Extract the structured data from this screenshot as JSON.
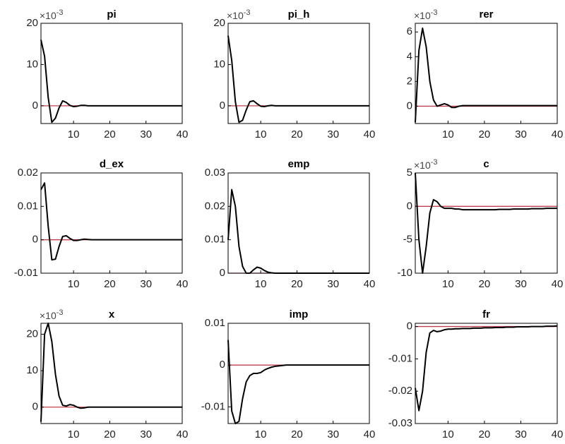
{
  "chart_data": [
    {
      "type": "line",
      "title": "pi",
      "y_multiplier": "×10",
      "y_multiplier_exponent": "-3",
      "color": "#000000",
      "zero_line_color": "#c0404f",
      "xlim": [
        1,
        40
      ],
      "xticks": [
        10,
        20,
        30,
        40
      ],
      "ylim": [
        -4.3,
        20
      ],
      "yticks": [
        0,
        10,
        20
      ],
      "x": [
        1,
        2,
        3,
        4,
        5,
        6,
        7,
        8,
        9,
        10,
        11,
        12,
        13,
        14,
        15,
        16,
        17,
        18,
        19,
        20,
        21,
        22,
        23,
        24,
        25,
        26,
        27,
        28,
        29,
        30,
        31,
        32,
        33,
        34,
        35,
        36,
        37,
        38,
        39,
        40
      ],
      "values": [
        16,
        12,
        2,
        -4,
        -3,
        -0.5,
        1.2,
        0.8,
        0.1,
        -0.2,
        -0.1,
        0.1,
        0.1,
        0,
        0,
        0,
        0,
        0,
        0,
        0,
        0,
        0,
        0,
        0,
        0,
        0,
        0,
        0,
        0,
        0,
        0,
        0,
        0,
        0,
        0,
        0,
        0,
        0,
        0,
        0
      ]
    },
    {
      "type": "line",
      "title": "pi_h",
      "y_multiplier": "×10",
      "y_multiplier_exponent": "-3",
      "color": "#000000",
      "zero_line_color": "#c0404f",
      "xlim": [
        1,
        40
      ],
      "xticks": [
        10,
        20,
        30,
        40
      ],
      "ylim": [
        -4.3,
        20
      ],
      "yticks": [
        0,
        10,
        20
      ],
      "x": [
        1,
        2,
        3,
        4,
        5,
        6,
        7,
        8,
        9,
        10,
        11,
        12,
        13,
        14,
        15,
        16,
        17,
        18,
        19,
        20,
        21,
        22,
        23,
        24,
        25,
        26,
        27,
        28,
        29,
        30,
        31,
        32,
        33,
        34,
        35,
        36,
        37,
        38,
        39,
        40
      ],
      "values": [
        17,
        11,
        1,
        -4,
        -3.5,
        -1,
        1,
        1.2,
        0.5,
        -0.1,
        -0.2,
        0,
        0.1,
        0,
        0,
        0,
        0,
        0,
        0,
        0,
        0,
        0,
        0,
        0,
        0,
        0,
        0,
        0,
        0,
        0,
        0,
        0,
        0,
        0,
        0,
        0,
        0,
        0,
        0,
        0
      ]
    },
    {
      "type": "line",
      "title": "rer",
      "y_multiplier": "×10",
      "y_multiplier_exponent": "-3",
      "color": "#000000",
      "zero_line_color": "#c0404f",
      "xlim": [
        1,
        40
      ],
      "xticks": [
        10,
        20,
        30,
        40
      ],
      "ylim": [
        -1.4,
        6.7
      ],
      "yticks": [
        0,
        2,
        4,
        6
      ],
      "x": [
        1,
        2,
        3,
        4,
        5,
        6,
        7,
        8,
        9,
        10,
        11,
        12,
        13,
        14,
        15,
        16,
        17,
        18,
        19,
        20,
        21,
        22,
        23,
        24,
        25,
        26,
        27,
        28,
        29,
        30,
        31,
        32,
        33,
        34,
        35,
        36,
        37,
        38,
        39,
        40
      ],
      "values": [
        -1.3,
        4.5,
        6.3,
        4.8,
        2,
        0.5,
        0,
        0.1,
        0.2,
        0.1,
        -0.1,
        -0.1,
        0,
        0.05,
        0.05,
        0.05,
        0.05,
        0.05,
        0.05,
        0.05,
        0.05,
        0.05,
        0.05,
        0.05,
        0.05,
        0.05,
        0.05,
        0.05,
        0.05,
        0.05,
        0.05,
        0.05,
        0.05,
        0.05,
        0.05,
        0.05,
        0.05,
        0.05,
        0.05,
        0.05
      ]
    },
    {
      "type": "line",
      "title": "d_ex",
      "color": "#000000",
      "zero_line_color": "#c0404f",
      "xlim": [
        1,
        40
      ],
      "xticks": [
        10,
        20,
        30,
        40
      ],
      "ylim": [
        -0.01,
        0.02
      ],
      "yticks": [
        -0.01,
        0,
        0.01,
        0.02
      ],
      "x": [
        1,
        2,
        3,
        4,
        5,
        6,
        7,
        8,
        9,
        10,
        11,
        12,
        13,
        14,
        15,
        16,
        17,
        18,
        19,
        20,
        21,
        22,
        23,
        24,
        25,
        26,
        27,
        28,
        29,
        30,
        31,
        32,
        33,
        34,
        35,
        36,
        37,
        38,
        39,
        40
      ],
      "values": [
        0.015,
        0.017,
        0.004,
        -0.006,
        -0.0058,
        -0.002,
        0.001,
        0.0012,
        0.0004,
        -0.0002,
        -0.0002,
        0,
        0.0002,
        0.0001,
        0,
        0,
        0,
        0,
        0,
        0,
        0,
        0,
        0,
        0,
        0,
        0,
        0,
        0,
        0,
        0,
        0,
        0,
        0,
        0,
        0,
        0,
        0,
        0,
        0,
        0
      ]
    },
    {
      "type": "line",
      "title": "emp",
      "color": "#000000",
      "zero_line_color": "#c0404f",
      "xlim": [
        1,
        40
      ],
      "xticks": [
        10,
        20,
        30,
        40
      ],
      "ylim": [
        0,
        0.03
      ],
      "yticks": [
        0,
        0.01,
        0.02,
        0.03
      ],
      "x": [
        1,
        2,
        3,
        4,
        5,
        6,
        7,
        8,
        9,
        10,
        11,
        12,
        13,
        14,
        15,
        16,
        17,
        18,
        19,
        20,
        21,
        22,
        23,
        24,
        25,
        26,
        27,
        28,
        29,
        30,
        31,
        32,
        33,
        34,
        35,
        36,
        37,
        38,
        39,
        40
      ],
      "values": [
        0.01,
        0.025,
        0.02,
        0.008,
        0.002,
        0,
        0,
        0.001,
        0.0018,
        0.0015,
        0.0008,
        0.0003,
        0.0001,
        0,
        0,
        0,
        0,
        0,
        0,
        0,
        0,
        0,
        0,
        0,
        0,
        0,
        0,
        0,
        0,
        0,
        0,
        0,
        0,
        0,
        0,
        0,
        0,
        0,
        0,
        0
      ]
    },
    {
      "type": "line",
      "title": "c",
      "y_multiplier": "×10",
      "y_multiplier_exponent": "-3",
      "color": "#000000",
      "zero_line_color": "#c0404f",
      "xlim": [
        1,
        40
      ],
      "xticks": [
        10,
        20,
        30,
        40
      ],
      "ylim": [
        -10,
        5
      ],
      "yticks": [
        -10,
        -5,
        0,
        5
      ],
      "x": [
        1,
        2,
        3,
        4,
        5,
        6,
        7,
        8,
        9,
        10,
        11,
        12,
        13,
        14,
        15,
        16,
        17,
        18,
        19,
        20,
        21,
        22,
        23,
        24,
        25,
        26,
        27,
        28,
        29,
        30,
        31,
        32,
        33,
        34,
        35,
        36,
        37,
        38,
        39,
        40
      ],
      "values": [
        5,
        -5,
        -10,
        -6,
        -1,
        1,
        0.7,
        0,
        -0.3,
        -0.3,
        -0.3,
        -0.4,
        -0.4,
        -0.5,
        -0.5,
        -0.5,
        -0.5,
        -0.5,
        -0.5,
        -0.5,
        -0.5,
        -0.5,
        -0.5,
        -0.45,
        -0.45,
        -0.45,
        -0.45,
        -0.4,
        -0.4,
        -0.4,
        -0.4,
        -0.4,
        -0.35,
        -0.35,
        -0.35,
        -0.35,
        -0.3,
        -0.3,
        -0.3,
        -0.3
      ]
    },
    {
      "type": "line",
      "title": "x",
      "y_multiplier": "×10",
      "y_multiplier_exponent": "-3",
      "color": "#000000",
      "zero_line_color": "#c0404f",
      "xlim": [
        1,
        40
      ],
      "xticks": [
        10,
        20,
        30,
        40
      ],
      "ylim": [
        -4.5,
        23
      ],
      "yticks": [
        0,
        10,
        20
      ],
      "x": [
        1,
        2,
        3,
        4,
        5,
        6,
        7,
        8,
        9,
        10,
        11,
        12,
        13,
        14,
        15,
        16,
        17,
        18,
        19,
        20,
        21,
        22,
        23,
        24,
        25,
        26,
        27,
        28,
        29,
        30,
        31,
        32,
        33,
        34,
        35,
        36,
        37,
        38,
        39,
        40
      ],
      "values": [
        -4,
        20,
        23,
        18,
        9,
        3,
        0.5,
        0.3,
        0.7,
        0.5,
        0,
        -0.3,
        -0.2,
        0,
        0,
        0,
        0,
        0,
        0,
        0,
        0,
        0,
        0,
        0,
        0,
        0,
        0,
        0,
        0,
        0,
        0,
        0,
        0,
        0,
        0,
        0,
        0,
        0,
        0,
        0
      ]
    },
    {
      "type": "line",
      "title": "imp",
      "color": "#000000",
      "zero_line_color": "#c0404f",
      "xlim": [
        1,
        40
      ],
      "xticks": [
        10,
        20,
        30,
        40
      ],
      "ylim": [
        -0.014,
        0.01
      ],
      "yticks": [
        -0.01,
        0,
        0.01
      ],
      "x": [
        1,
        2,
        3,
        4,
        5,
        6,
        7,
        8,
        9,
        10,
        11,
        12,
        13,
        14,
        15,
        16,
        17,
        18,
        19,
        20,
        21,
        22,
        23,
        24,
        25,
        26,
        27,
        28,
        29,
        30,
        31,
        32,
        33,
        34,
        35,
        36,
        37,
        38,
        39,
        40
      ],
      "values": [
        0.006,
        -0.011,
        -0.014,
        -0.0135,
        -0.008,
        -0.004,
        -0.0025,
        -0.002,
        -0.002,
        -0.0018,
        -0.0012,
        -0.0008,
        -0.0005,
        -0.0003,
        -0.0002,
        -0.0001,
        0,
        0,
        0,
        0,
        0,
        0,
        0,
        0,
        0,
        0,
        0,
        0,
        0,
        0,
        0,
        0,
        0,
        0,
        0,
        0,
        0,
        0,
        0,
        0
      ]
    },
    {
      "type": "line",
      "title": "fr",
      "color": "#000000",
      "zero_line_color": "#c0404f",
      "xlim": [
        1,
        40
      ],
      "xticks": [
        10,
        20,
        30,
        40
      ],
      "ylim": [
        -0.03,
        0.001
      ],
      "yticks": [
        -0.03,
        -0.02,
        -0.01,
        0
      ],
      "x": [
        1,
        2,
        3,
        4,
        5,
        6,
        7,
        8,
        9,
        10,
        11,
        12,
        13,
        14,
        15,
        16,
        17,
        18,
        19,
        20,
        21,
        22,
        23,
        24,
        25,
        26,
        27,
        28,
        29,
        30,
        31,
        32,
        33,
        34,
        35,
        36,
        37,
        38,
        39,
        40
      ],
      "values": [
        -0.019,
        -0.026,
        -0.02,
        -0.008,
        -0.002,
        -0.0012,
        -0.0016,
        -0.0014,
        -0.001,
        -0.0008,
        -0.0008,
        -0.0007,
        -0.0007,
        -0.0006,
        -0.0006,
        -0.0006,
        -0.0005,
        -0.0005,
        -0.0005,
        -0.0004,
        -0.0004,
        -0.0004,
        -0.0003,
        -0.0003,
        -0.0003,
        -0.0002,
        -0.0002,
        -0.0002,
        -0.0001,
        -0.0001,
        -0.0001,
        -0.0001,
        0,
        0,
        0,
        0,
        0.0001,
        0.0001,
        0.0001,
        0.0002
      ]
    }
  ]
}
